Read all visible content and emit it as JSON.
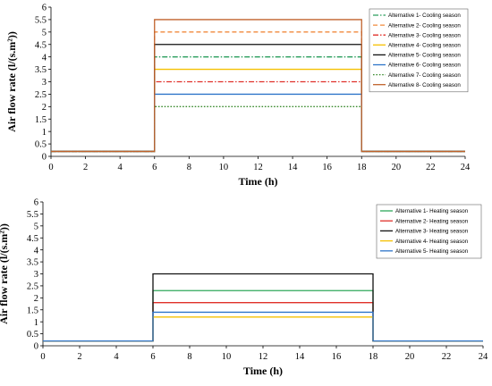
{
  "chart_data": [
    {
      "type": "line",
      "xlabel": "Time (h)",
      "ylabel": "Air flow rate (l/(s.m²))",
      "xlim": [
        0,
        24
      ],
      "ylim": [
        0,
        6
      ],
      "x_ticks": [
        "0",
        "2",
        "4",
        "6",
        "8",
        "10",
        "12",
        "14",
        "16",
        "18",
        "20",
        "22",
        "24"
      ],
      "y_ticks": [
        "0",
        "0.5",
        "1",
        "1.5",
        "2",
        "2.5",
        "3",
        "3.5",
        "4",
        "4.5",
        "5",
        "5.5",
        "6"
      ],
      "grid": false,
      "legend_position": "top-right",
      "baseline": 0.2,
      "occupied_start": 6,
      "occupied_end": 18,
      "series": [
        {
          "name": "Alternative 1- Cooling season",
          "occupied_value": 4.0,
          "color": "#2a9d5c",
          "dash": "dashdot"
        },
        {
          "name": "Alternative 2- Cooling season",
          "occupied_value": 5.0,
          "color": "#f08a3c",
          "dash": "dash"
        },
        {
          "name": "Alternative 3- Cooling season",
          "occupied_value": 3.0,
          "color": "#e0302a",
          "dash": "dashdot"
        },
        {
          "name": "Alternative 4- Cooling season",
          "occupied_value": 3.5,
          "color": "#f5c000",
          "dash": "solid"
        },
        {
          "name": "Alternative 5- Cooling season",
          "occupied_value": 4.5,
          "color": "#111111",
          "dash": "solid"
        },
        {
          "name": "Alternative 6- Cooling season",
          "occupied_value": 2.5,
          "color": "#2e75c9",
          "dash": "solid"
        },
        {
          "name": "Alternative 7- Cooling season",
          "occupied_value": 2.0,
          "color": "#3a8a2e",
          "dash": "dot"
        },
        {
          "name": "Alternative 8- Cooling season",
          "occupied_value": 5.5,
          "color": "#c0622c",
          "dash": "solid"
        }
      ]
    },
    {
      "type": "line",
      "xlabel": "Time (h)",
      "ylabel": "Air flow rate (l/(s.m²))",
      "xlim": [
        0,
        24
      ],
      "ylim": [
        0,
        6
      ],
      "x_ticks": [
        "0",
        "2",
        "4",
        "6",
        "8",
        "10",
        "12",
        "14",
        "16",
        "18",
        "20",
        "22",
        "24"
      ],
      "y_ticks": [
        "0",
        "0.5",
        "1",
        "1.5",
        "2",
        "2.5",
        "3",
        "3.5",
        "4",
        "4.5",
        "5",
        "5.5",
        "6"
      ],
      "grid": false,
      "legend_position": "top-right",
      "baseline": 0.2,
      "occupied_start": 6,
      "occupied_end": 18,
      "series": [
        {
          "name": "Alternative 1- Heating season",
          "occupied_value": 2.3,
          "color": "#2ea85a",
          "dash": "solid"
        },
        {
          "name": "Alternative 2- Heating season",
          "occupied_value": 1.8,
          "color": "#e0302a",
          "dash": "solid"
        },
        {
          "name": "Alternative 3- Heating season",
          "occupied_value": 3.0,
          "color": "#111111",
          "dash": "solid"
        },
        {
          "name": "Alternative 4- Heating season",
          "occupied_value": 1.2,
          "color": "#f5c000",
          "dash": "solid"
        },
        {
          "name": "Alternative 5- Heating season",
          "occupied_value": 1.4,
          "color": "#2e75c9",
          "dash": "solid"
        }
      ]
    }
  ]
}
